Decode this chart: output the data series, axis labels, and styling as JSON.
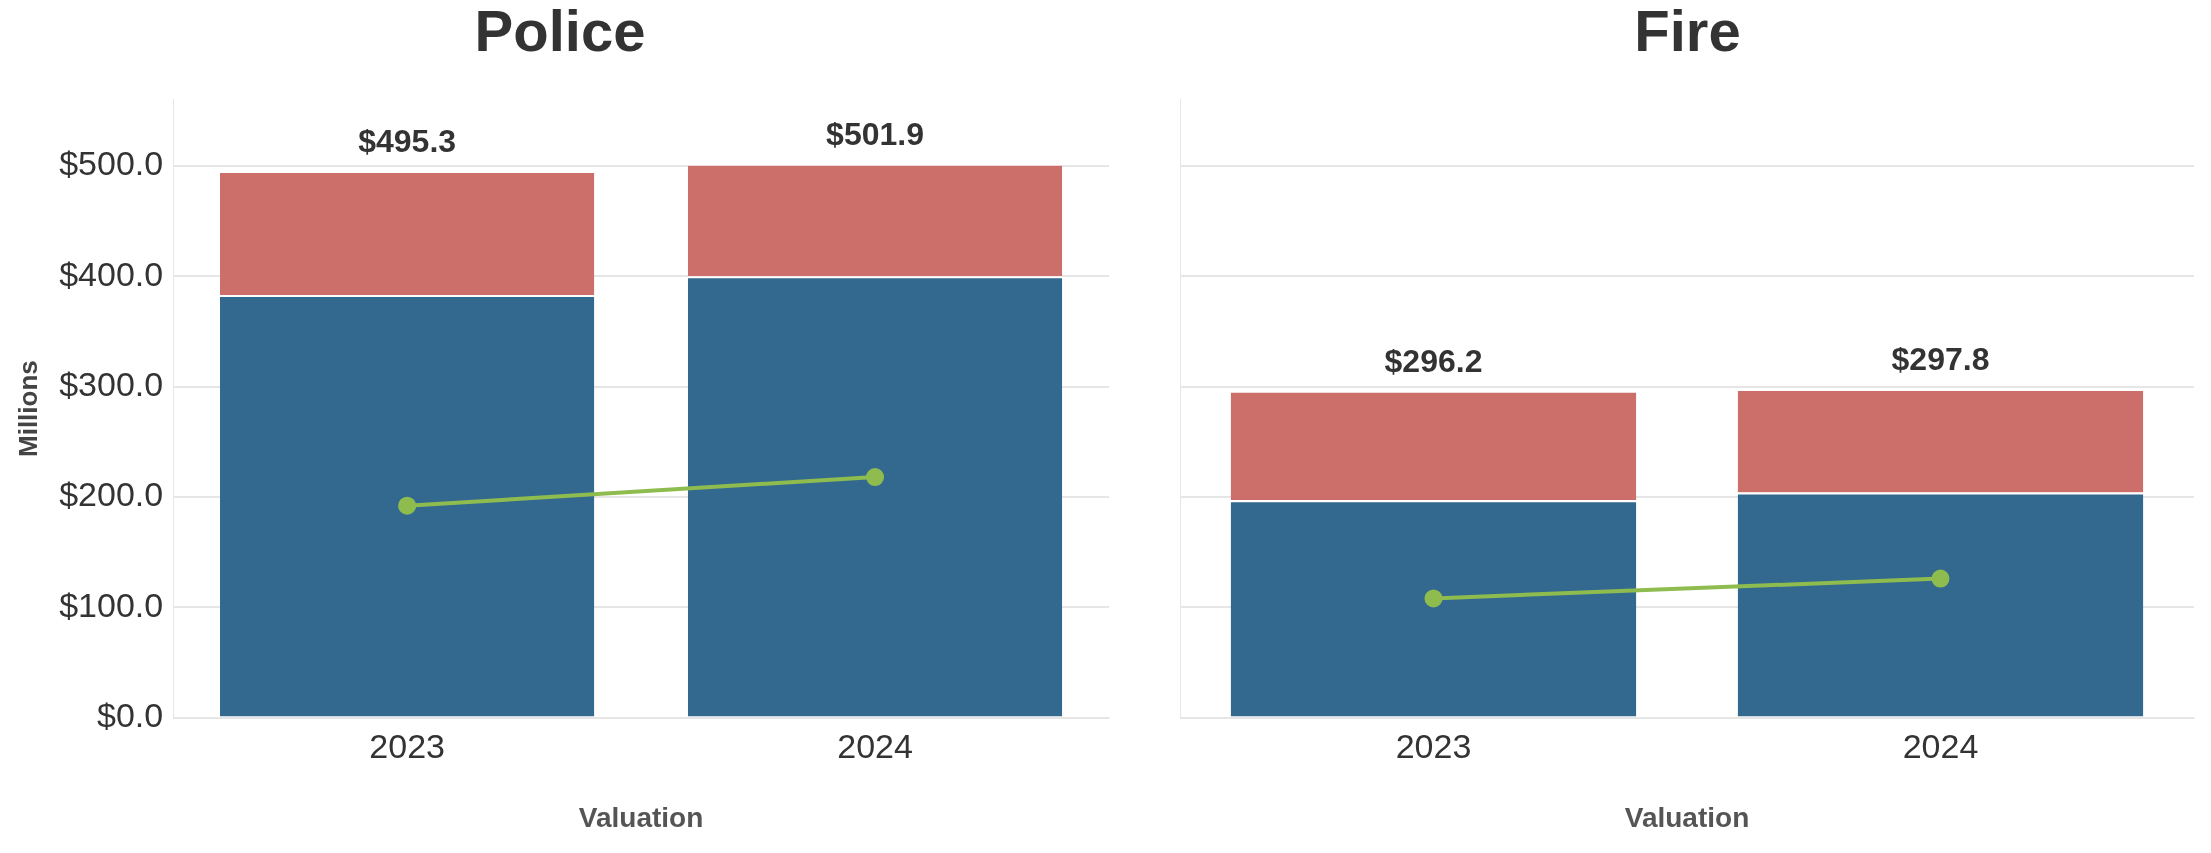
{
  "chart_data": [
    {
      "type": "bar",
      "title": "Police",
      "xlabel": "Valuation",
      "ylabel": "Millions",
      "categories": [
        "2023",
        "2024"
      ],
      "stacked": true,
      "grid": "y",
      "legend": false,
      "series": [
        {
          "color": "#33698f",
          "values": [
            383,
            400
          ]
        },
        {
          "color": "#cc6f6b",
          "values": [
            112.3,
            101.9
          ]
        },
        {
          "type": "line",
          "color": "#8fbc4e",
          "marker": "circle",
          "values": [
            192,
            218
          ]
        }
      ],
      "totals": [
        "$495.3",
        "$501.9"
      ],
      "ylim": [
        0,
        560
      ],
      "yticks": [
        {
          "value": 0,
          "label": "$0.0"
        },
        {
          "value": 100,
          "label": "$100.0"
        },
        {
          "value": 200,
          "label": "$200.0"
        },
        {
          "value": 300,
          "label": "$300.0"
        },
        {
          "value": 400,
          "label": "$400.0"
        },
        {
          "value": 500,
          "label": "$500.0"
        }
      ]
    },
    {
      "type": "bar",
      "title": "Fire",
      "xlabel": "Valuation",
      "categories": [
        "2023",
        "2024"
      ],
      "stacked": true,
      "grid": "y",
      "legend": false,
      "tick_labels": "x",
      "series": [
        {
          "color": "#33698f",
          "values": [
            197,
            204
          ]
        },
        {
          "color": "#cc6f6b",
          "values": [
            99.2,
            93.8
          ]
        },
        {
          "type": "line",
          "color": "#8fbc4e",
          "marker": "circle",
          "values": [
            108,
            126
          ]
        }
      ],
      "totals": [
        "$296.2",
        "$297.8"
      ],
      "ylim": [
        0,
        560
      ],
      "yticks": [
        {
          "value": 0,
          "label": null
        },
        {
          "value": 100,
          "label": null
        },
        {
          "value": 200,
          "label": null
        },
        {
          "value": 300,
          "label": null
        },
        {
          "value": 400,
          "label": null
        },
        {
          "value": 500,
          "label": null
        }
      ]
    }
  ]
}
